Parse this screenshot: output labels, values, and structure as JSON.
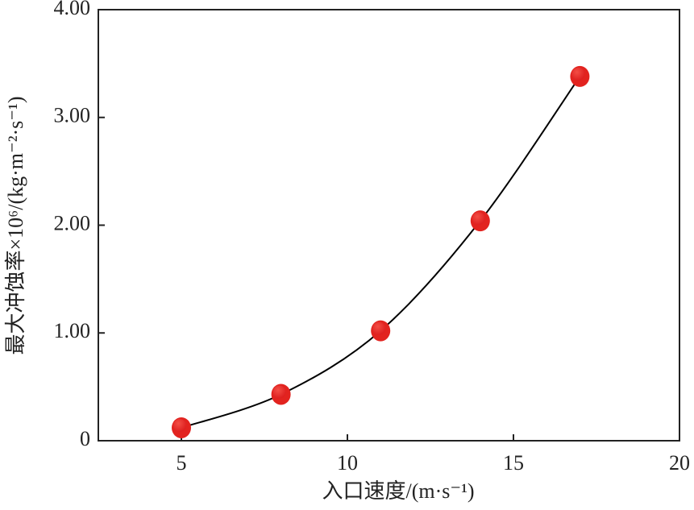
{
  "chart_data": {
    "type": "scatter",
    "x_label": "入口速度/(m·s⁻¹)",
    "y_label": "最大冲蚀率×10⁶/(kg·m⁻²·s⁻¹)",
    "x": [
      5,
      8,
      11,
      14,
      17
    ],
    "values": [
      0.12,
      0.43,
      1.02,
      2.04,
      3.38
    ],
    "color": "#e2231f",
    "line_color": "#000000",
    "smooth": true,
    "xlim": [
      2.5,
      20
    ],
    "xticks": [
      5,
      10,
      15,
      20
    ],
    "ylim": [
      0,
      4
    ],
    "yticks": [
      0,
      {
        "value": 1,
        "label": "1.00"
      },
      {
        "value": 2,
        "label": "2.00"
      },
      {
        "value": 3,
        "label": "3.00"
      },
      {
        "value": 4,
        "label": "4.00"
      }
    ]
  }
}
